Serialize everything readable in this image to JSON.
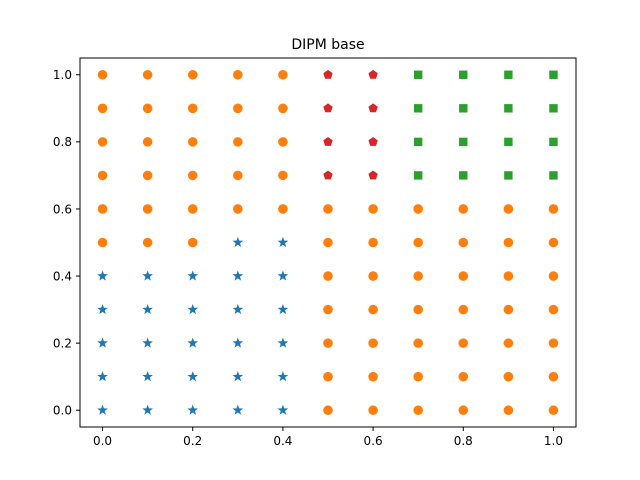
{
  "chart_data": {
    "type": "scatter",
    "title": "DIPM base",
    "xlabel": "",
    "ylabel": "",
    "xlim": [
      -0.05,
      1.05
    ],
    "ylim": [
      -0.05,
      1.05
    ],
    "xticks": [
      0.0,
      0.2,
      0.4,
      0.6,
      0.8,
      1.0
    ],
    "yticks": [
      0.0,
      0.2,
      0.4,
      0.6,
      0.8,
      1.0
    ],
    "xtick_labels": [
      "0.0",
      "0.2",
      "0.4",
      "0.6",
      "0.8",
      "1.0"
    ],
    "ytick_labels": [
      "0.0",
      "0.2",
      "0.4",
      "0.6",
      "0.8",
      "1.0"
    ],
    "grid": false,
    "series": [
      {
        "marker": "star",
        "color": "#1f77b4",
        "points": [
          [
            0.0,
            0.0
          ],
          [
            0.1,
            0.0
          ],
          [
            0.2,
            0.0
          ],
          [
            0.3,
            0.0
          ],
          [
            0.4,
            0.0
          ],
          [
            0.0,
            0.1
          ],
          [
            0.1,
            0.1
          ],
          [
            0.2,
            0.1
          ],
          [
            0.3,
            0.1
          ],
          [
            0.4,
            0.1
          ],
          [
            0.0,
            0.2
          ],
          [
            0.1,
            0.2
          ],
          [
            0.2,
            0.2
          ],
          [
            0.3,
            0.2
          ],
          [
            0.4,
            0.2
          ],
          [
            0.0,
            0.3
          ],
          [
            0.1,
            0.3
          ],
          [
            0.2,
            0.3
          ],
          [
            0.3,
            0.3
          ],
          [
            0.4,
            0.3
          ],
          [
            0.0,
            0.4
          ],
          [
            0.1,
            0.4
          ],
          [
            0.2,
            0.4
          ],
          [
            0.3,
            0.4
          ],
          [
            0.4,
            0.4
          ],
          [
            0.3,
            0.5
          ],
          [
            0.4,
            0.5
          ]
        ]
      },
      {
        "marker": "circle",
        "color": "#ff7f0e",
        "points": [
          [
            0.5,
            0.0
          ],
          [
            0.6,
            0.0
          ],
          [
            0.7,
            0.0
          ],
          [
            0.8,
            0.0
          ],
          [
            0.9,
            0.0
          ],
          [
            1.0,
            0.0
          ],
          [
            0.5,
            0.1
          ],
          [
            0.6,
            0.1
          ],
          [
            0.7,
            0.1
          ],
          [
            0.8,
            0.1
          ],
          [
            0.9,
            0.1
          ],
          [
            1.0,
            0.1
          ],
          [
            0.5,
            0.2
          ],
          [
            0.6,
            0.2
          ],
          [
            0.7,
            0.2
          ],
          [
            0.8,
            0.2
          ],
          [
            0.9,
            0.2
          ],
          [
            1.0,
            0.2
          ],
          [
            0.5,
            0.3
          ],
          [
            0.6,
            0.3
          ],
          [
            0.7,
            0.3
          ],
          [
            0.8,
            0.3
          ],
          [
            0.9,
            0.3
          ],
          [
            1.0,
            0.3
          ],
          [
            0.5,
            0.4
          ],
          [
            0.6,
            0.4
          ],
          [
            0.7,
            0.4
          ],
          [
            0.8,
            0.4
          ],
          [
            0.9,
            0.4
          ],
          [
            1.0,
            0.4
          ],
          [
            0.0,
            0.5
          ],
          [
            0.1,
            0.5
          ],
          [
            0.2,
            0.5
          ],
          [
            0.5,
            0.5
          ],
          [
            0.6,
            0.5
          ],
          [
            0.7,
            0.5
          ],
          [
            0.8,
            0.5
          ],
          [
            0.9,
            0.5
          ],
          [
            1.0,
            0.5
          ],
          [
            0.0,
            0.6
          ],
          [
            0.1,
            0.6
          ],
          [
            0.2,
            0.6
          ],
          [
            0.3,
            0.6
          ],
          [
            0.4,
            0.6
          ],
          [
            0.5,
            0.6
          ],
          [
            0.6,
            0.6
          ],
          [
            0.7,
            0.6
          ],
          [
            0.8,
            0.6
          ],
          [
            0.9,
            0.6
          ],
          [
            1.0,
            0.6
          ],
          [
            0.0,
            0.7
          ],
          [
            0.1,
            0.7
          ],
          [
            0.2,
            0.7
          ],
          [
            0.3,
            0.7
          ],
          [
            0.4,
            0.7
          ],
          [
            0.0,
            0.8
          ],
          [
            0.1,
            0.8
          ],
          [
            0.2,
            0.8
          ],
          [
            0.3,
            0.8
          ],
          [
            0.4,
            0.8
          ],
          [
            0.0,
            0.9
          ],
          [
            0.1,
            0.9
          ],
          [
            0.2,
            0.9
          ],
          [
            0.3,
            0.9
          ],
          [
            0.4,
            0.9
          ],
          [
            0.0,
            1.0
          ],
          [
            0.1,
            1.0
          ],
          [
            0.2,
            1.0
          ],
          [
            0.3,
            1.0
          ],
          [
            0.4,
            1.0
          ]
        ]
      },
      {
        "marker": "pentagon",
        "color": "#d62728",
        "points": [
          [
            0.5,
            0.7
          ],
          [
            0.6,
            0.7
          ],
          [
            0.5,
            0.8
          ],
          [
            0.6,
            0.8
          ],
          [
            0.5,
            0.9
          ],
          [
            0.6,
            0.9
          ],
          [
            0.5,
            1.0
          ],
          [
            0.6,
            1.0
          ]
        ]
      },
      {
        "marker": "square",
        "color": "#2ca02c",
        "points": [
          [
            0.7,
            0.7
          ],
          [
            0.8,
            0.7
          ],
          [
            0.9,
            0.7
          ],
          [
            1.0,
            0.7
          ],
          [
            0.7,
            0.8
          ],
          [
            0.8,
            0.8
          ],
          [
            0.9,
            0.8
          ],
          [
            1.0,
            0.8
          ],
          [
            0.7,
            0.9
          ],
          [
            0.8,
            0.9
          ],
          [
            0.9,
            0.9
          ],
          [
            1.0,
            0.9
          ],
          [
            0.7,
            1.0
          ],
          [
            0.8,
            1.0
          ],
          [
            0.9,
            1.0
          ],
          [
            1.0,
            1.0
          ]
        ]
      }
    ]
  }
}
